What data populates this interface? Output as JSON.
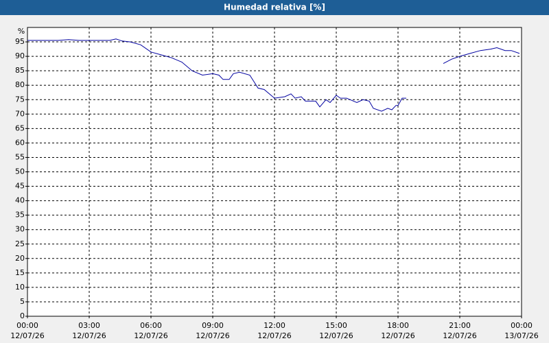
{
  "chart_data": {
    "type": "line",
    "title": "Humedad relativa [%]",
    "y_label": "%",
    "x": [
      0,
      0.5,
      1,
      1.5,
      2,
      2.5,
      3,
      3.5,
      4,
      4.3,
      4.6,
      5,
      5.5,
      6,
      6.5,
      7,
      7.5,
      8,
      8.5,
      9,
      9.3,
      9.5,
      9.8,
      10,
      10.3,
      10.8,
      11.2,
      11.5,
      12,
      12.5,
      12.8,
      13,
      13.3,
      13.5,
      14,
      14.2,
      14.5,
      14.7,
      15,
      15.2,
      15.5,
      16,
      16.3,
      16.6,
      16.8,
      17.2,
      17.5,
      17.7,
      17.9,
      18,
      18.2,
      18.4,
      19,
      20.2,
      20.6,
      21,
      21.5,
      22,
      22.5,
      22.8,
      23.2,
      23.5,
      23.9
    ],
    "series": [
      {
        "name": "Humedad relativa",
        "color": "#0000a0",
        "values": [
          95.5,
          95.5,
          95.5,
          95.5,
          95.8,
          95.5,
          95.5,
          95.5,
          95.5,
          96,
          95.3,
          95,
          94,
          91.5,
          90.5,
          89.5,
          88,
          85,
          83.5,
          84,
          83.5,
          82,
          82,
          84,
          84.5,
          83.5,
          79,
          78.5,
          75.5,
          76,
          77,
          75.5,
          76,
          74.5,
          74.5,
          72.5,
          75,
          74,
          76.5,
          75.5,
          75.5,
          74,
          75,
          74.5,
          72,
          71,
          72,
          71.5,
          73,
          73,
          75.5,
          75.5,
          null,
          87.5,
          89,
          90,
          91,
          92,
          92.5,
          93,
          92,
          92,
          91
        ]
      }
    ],
    "xlim": [
      0,
      24
    ],
    "xticks": [
      {
        "value": 0,
        "label": "00:00",
        "date": "12/07/26"
      },
      {
        "value": 3,
        "label": "03:00",
        "date": "12/07/26"
      },
      {
        "value": 6,
        "label": "06:00",
        "date": "12/07/26"
      },
      {
        "value": 9,
        "label": "09:00",
        "date": "12/07/26"
      },
      {
        "value": 12,
        "label": "12:00",
        "date": "12/07/26"
      },
      {
        "value": 15,
        "label": "15:00",
        "date": "12/07/26"
      },
      {
        "value": 18,
        "label": "18:00",
        "date": "12/07/26"
      },
      {
        "value": 21,
        "label": "21:00",
        "date": "12/07/26"
      },
      {
        "value": 24,
        "label": "00:00",
        "date": "13/07/26"
      }
    ],
    "ylim": [
      0,
      100
    ],
    "yticks": [
      0,
      5,
      10,
      15,
      20,
      25,
      30,
      35,
      40,
      45,
      50,
      55,
      60,
      65,
      70,
      75,
      80,
      85,
      90,
      95
    ],
    "grid": true
  }
}
